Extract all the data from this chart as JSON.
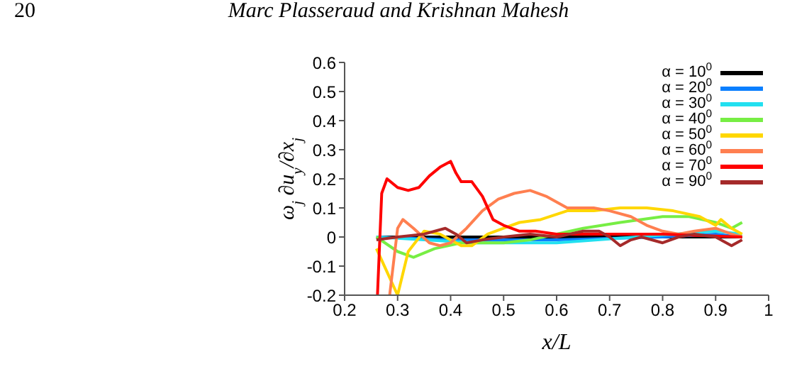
{
  "chart_data": {
    "type": "line",
    "xlabel": "x/L",
    "ylabel": "ω$_{j}$ ∂u$_{y}$/∂x$_{j}$",
    "annotations": [
      "20",
      "Marc Plasseraud and Krishnan Mahesh"
    ],
    "xlim": [
      0.2,
      1
    ],
    "xticks": [
      0.2,
      0.3,
      0.4,
      0.5,
      0.6,
      0.7,
      0.8,
      0.9,
      1
    ],
    "ylim": [
      -0.2,
      0.6
    ],
    "yticks": [
      -0.2,
      -0.1,
      0,
      0.1,
      0.2,
      0.3,
      0.4,
      0.5,
      0.6
    ],
    "grid": false,
    "legend": "top right",
    "marker": "none",
    "line_style": "solid",
    "series": [
      {
        "name": "α = 10$^{0}$",
        "color": "#000000",
        "x": [
          0.26,
          0.4,
          0.6,
          0.8,
          0.95
        ],
        "values": [
          0,
          0,
          0,
          0,
          0
        ]
      },
      {
        "name": "α = 20$^{0}$",
        "color": "#0a7fff",
        "x": [
          0.26,
          0.4,
          0.6,
          0.8,
          0.9,
          0.95
        ],
        "values": [
          0,
          -0.01,
          -0.01,
          0,
          0.01,
          0
        ]
      },
      {
        "name": "α = 30$^{0}$",
        "color": "#22e0f0",
        "x": [
          0.26,
          0.35,
          0.45,
          0.6,
          0.75,
          0.9,
          0.95
        ],
        "values": [
          0,
          -0.01,
          -0.02,
          -0.02,
          0,
          0.02,
          0.01
        ]
      },
      {
        "name": "α = 40$^{0}$",
        "color": "#77ee44",
        "x": [
          0.26,
          0.3,
          0.33,
          0.37,
          0.42,
          0.5,
          0.55,
          0.6,
          0.65,
          0.72,
          0.8,
          0.85,
          0.9,
          0.93,
          0.95
        ],
        "values": [
          0,
          -0.05,
          -0.07,
          -0.04,
          -0.02,
          -0.02,
          -0.01,
          0.01,
          0.03,
          0.05,
          0.07,
          0.07,
          0.05,
          0.03,
          0.05
        ]
      },
      {
        "name": "α = 50$^{0}$",
        "color": "#ffd700",
        "x": [
          0.26,
          0.28,
          0.3,
          0.32,
          0.35,
          0.38,
          0.42,
          0.44,
          0.47,
          0.5,
          0.53,
          0.57,
          0.62,
          0.67,
          0.72,
          0.77,
          0.82,
          0.87,
          0.9,
          0.91,
          0.93,
          0.95
        ],
        "values": [
          -0.04,
          -0.12,
          -0.2,
          -0.05,
          0.02,
          0.01,
          -0.03,
          -0.03,
          0.01,
          0.03,
          0.05,
          0.06,
          0.09,
          0.09,
          0.1,
          0.1,
          0.09,
          0.07,
          0.04,
          0.06,
          0.03,
          0.01
        ]
      },
      {
        "name": "α = 60$^{0}$",
        "color": "#ff7f50",
        "x": [
          0.285,
          0.3,
          0.31,
          0.33,
          0.36,
          0.38,
          0.4,
          0.43,
          0.46,
          0.49,
          0.52,
          0.55,
          0.58,
          0.62,
          0.67,
          0.7,
          0.74,
          0.77,
          0.8,
          0.83,
          0.86,
          0.9,
          0.93,
          0.95
        ],
        "values": [
          -0.2,
          0.03,
          0.06,
          0.03,
          -0.02,
          -0.03,
          -0.02,
          0.03,
          0.09,
          0.13,
          0.15,
          0.16,
          0.14,
          0.1,
          0.1,
          0.09,
          0.07,
          0.04,
          0.02,
          0.01,
          0.02,
          0.03,
          0.01,
          0
        ]
      },
      {
        "name": "α = 70$^{0}$",
        "color": "#ff0000",
        "x": [
          0.262,
          0.27,
          0.28,
          0.3,
          0.32,
          0.34,
          0.36,
          0.38,
          0.4,
          0.41,
          0.42,
          0.44,
          0.46,
          0.48,
          0.5,
          0.53,
          0.56,
          0.6,
          0.7,
          0.8,
          0.95
        ],
        "values": [
          -0.2,
          0.15,
          0.2,
          0.17,
          0.16,
          0.17,
          0.21,
          0.24,
          0.26,
          0.22,
          0.19,
          0.19,
          0.14,
          0.06,
          0.04,
          0.02,
          0.02,
          0.01,
          0.01,
          0.01,
          0
        ]
      },
      {
        "name": "α = 90$^{0}$",
        "color": "#a52a2a",
        "x": [
          0.26,
          0.3,
          0.35,
          0.39,
          0.41,
          0.43,
          0.46,
          0.5,
          0.55,
          0.6,
          0.65,
          0.68,
          0.7,
          0.72,
          0.74,
          0.76,
          0.8,
          0.83,
          0.86,
          0.9,
          0.93,
          0.95
        ],
        "values": [
          -0.01,
          0,
          0.01,
          0.03,
          0.01,
          -0.02,
          -0.01,
          0,
          0.01,
          0,
          0.02,
          0.02,
          0,
          -0.03,
          -0.01,
          0,
          -0.02,
          0,
          0.01,
          0,
          -0.03,
          -0.01
        ]
      }
    ]
  }
}
